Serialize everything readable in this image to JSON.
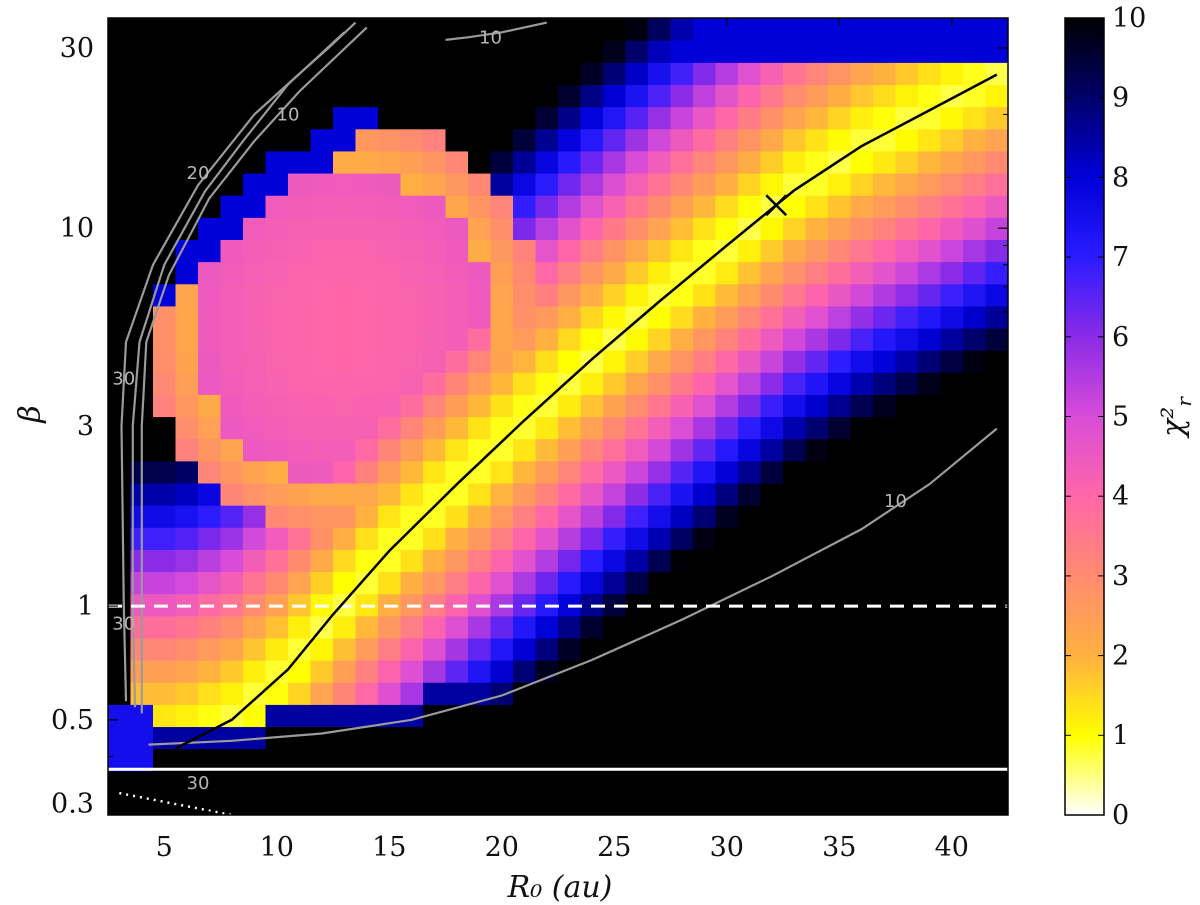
{
  "chart_data": {
    "type": "heatmap",
    "xlabel": "R₀ (au)",
    "ylabel": "β",
    "colorbar_label": "χ²",
    "colorbar_label_sub": "r",
    "x_range": [
      2.5,
      42.5
    ],
    "y_range": [
      0.28,
      36
    ],
    "y_scale": "log",
    "color_range": [
      0,
      10
    ],
    "x_ticks": [
      5,
      10,
      15,
      20,
      25,
      30,
      35,
      40
    ],
    "y_ticks": [
      0.3,
      0.5,
      1,
      3,
      10,
      30
    ],
    "y_tick_labels": [
      "0.3",
      "0.5",
      "1",
      "3",
      "10",
      "30"
    ],
    "colorbar_ticks": [
      0,
      1,
      2,
      3,
      4,
      5,
      6,
      7,
      8,
      9,
      10
    ],
    "colormap_stops": [
      {
        "value": 0,
        "color": "#ffffff"
      },
      {
        "value": 1,
        "color": "#ffff00"
      },
      {
        "value": 2,
        "color": "#ffb040"
      },
      {
        "value": 3,
        "color": "#ff8a70"
      },
      {
        "value": 4,
        "color": "#ff66a8"
      },
      {
        "value": 5,
        "color": "#d84cd8"
      },
      {
        "value": 6,
        "color": "#8a2be8"
      },
      {
        "value": 7,
        "color": "#2a1cff"
      },
      {
        "value": 8,
        "color": "#0000d8"
      },
      {
        "value": 9,
        "color": "#00006a"
      },
      {
        "value": 10,
        "color": "#000000"
      }
    ],
    "best_fit": {
      "x": 32.2,
      "y": 11.5,
      "marker": "x"
    },
    "best_fit_curve": [
      [
        5.5,
        0.42
      ],
      [
        8,
        0.5
      ],
      [
        10.5,
        0.68
      ],
      [
        12.5,
        0.95
      ],
      [
        15,
        1.4
      ],
      [
        18,
        2.1
      ],
      [
        21,
        3.1
      ],
      [
        24,
        4.5
      ],
      [
        27,
        6.4
      ],
      [
        30,
        9
      ],
      [
        33,
        12.6
      ],
      [
        36,
        16.5
      ],
      [
        39,
        20.5
      ],
      [
        42,
        25.5
      ]
    ],
    "reference_lines": [
      {
        "style": "dashed",
        "color": "#ffffff",
        "y": 1
      },
      {
        "style": "solid",
        "color": "#ffffff",
        "y": 0.37
      },
      {
        "style": "dotted",
        "color": "#ffffff",
        "points": [
          [
            3,
            0.32
          ],
          [
            8,
            0.28
          ]
        ]
      }
    ],
    "contours": [
      {
        "level": 10,
        "points": [
          [
            4.3,
            0.43
          ],
          [
            8,
            0.44
          ],
          [
            12,
            0.46
          ],
          [
            16,
            0.5
          ],
          [
            20,
            0.58
          ],
          [
            24,
            0.72
          ],
          [
            28,
            0.92
          ],
          [
            32,
            1.2
          ],
          [
            36,
            1.6
          ],
          [
            39,
            2.1
          ],
          [
            42,
            2.95
          ]
        ]
      },
      {
        "level": 30,
        "points": [
          [
            3.3,
            0.56
          ],
          [
            3.2,
            1
          ],
          [
            3.1,
            3
          ],
          [
            3.3,
            5
          ],
          [
            4.5,
            8
          ],
          [
            6.5,
            13
          ],
          [
            9,
            20
          ],
          [
            10.8,
            25
          ],
          [
            12.3,
            30
          ],
          [
            13.5,
            35
          ]
        ]
      },
      {
        "level": 20,
        "points": [
          [
            3.7,
            0.54
          ],
          [
            3.6,
            1
          ],
          [
            3.6,
            3
          ],
          [
            3.9,
            5
          ],
          [
            5,
            8
          ],
          [
            6.8,
            12.5
          ],
          [
            8.5,
            17
          ],
          [
            10.5,
            24
          ],
          [
            13,
            33
          ]
        ]
      },
      {
        "level": 10,
        "points": [
          [
            4,
            0.52
          ],
          [
            4,
            1
          ],
          [
            4,
            3
          ],
          [
            4.2,
            5
          ],
          [
            5.2,
            7.5
          ],
          [
            7,
            12
          ],
          [
            9,
            17
          ],
          [
            11,
            23
          ],
          [
            14,
            34
          ]
        ]
      },
      {
        "level": 10,
        "points": [
          [
            17.5,
            31.5
          ],
          [
            18.5,
            32
          ],
          [
            20,
            33
          ],
          [
            22,
            35
          ]
        ]
      }
    ],
    "contour_labels": [
      {
        "text": "10",
        "x": 10.5,
        "y": 20
      },
      {
        "text": "20",
        "x": 6.5,
        "y": 14
      },
      {
        "text": "30",
        "x": 3.2,
        "y": 4
      },
      {
        "text": "30",
        "x": 3.2,
        "y": 0.9
      },
      {
        "text": "30",
        "x": 6.5,
        "y": 0.34
      },
      {
        "text": "10",
        "x": 19.5,
        "y": 32
      },
      {
        "text": "10",
        "x": 37.5,
        "y": 1.9
      }
    ]
  }
}
